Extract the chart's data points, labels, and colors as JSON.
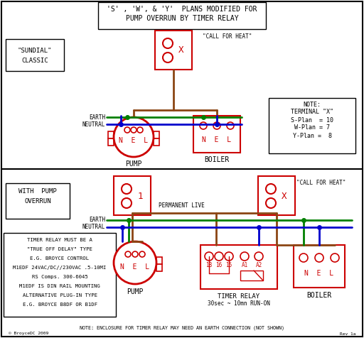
{
  "bg_color": "#ffffff",
  "black": "#000000",
  "red": "#cc0000",
  "green": "#008000",
  "blue": "#0000cc",
  "brown": "#8B4513",
  "title_line1": "'S' , 'W', & 'Y'  PLANS MODIFIED FOR",
  "title_line2": "PUMP OVERRUN BY TIMER RELAY",
  "sundial_label": "\"SUNDIAL\"\n  CLASSIC",
  "with_pump_label": "WITH  PUMP\n OVERRUN",
  "note_text": "NOTE:\n TERMINAL \"X\"\n S-Plan  = 10\n W-Plan = 7\n Y-Plan =  8",
  "timer_note_lines": [
    "TIMER RELAY MUST BE A",
    "\"TRUE OFF DELAY\" TYPE",
    "E.G. BROYCE CONTROL",
    "M1EDF 24VAC/DC//230VAC .5-10MI",
    "RS Comps. 300-6045",
    "M1EDF IS DIN RAIL MOUNTING",
    "ALTERNATIVE PLUG-IN TYPE",
    "E.G. BROYCE B8DF OR B1DF"
  ],
  "bottom_note": "NOTE: ENCLOSURE FOR TIMER RELAY MAY NEED AN EARTH CONNECTION (NOT SHOWN)"
}
